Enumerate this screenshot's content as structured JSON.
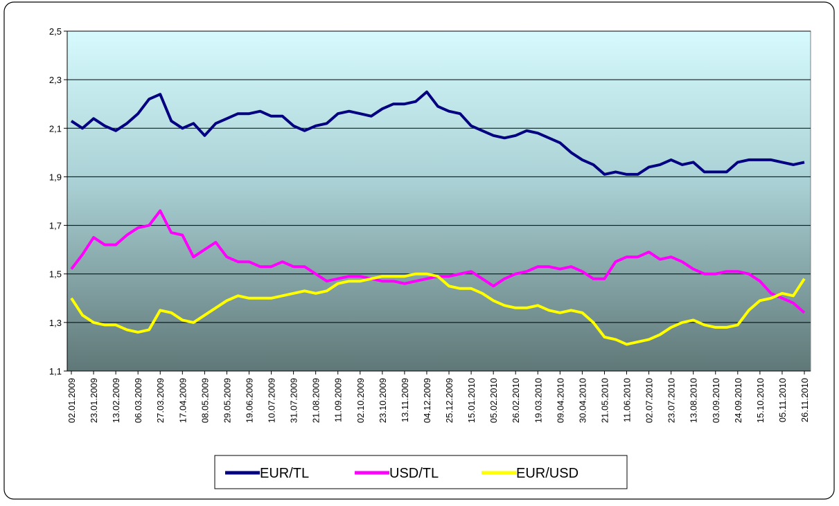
{
  "chart_data": {
    "type": "line",
    "categories": [
      "02.01.2009",
      null,
      "23.01.2009",
      null,
      "13.02.2009",
      null,
      "06.03.2009",
      null,
      "27.03.2009",
      null,
      "17.04.2009",
      null,
      "08.05.2009",
      null,
      "29.05.2009",
      null,
      "19.06.2009",
      null,
      "10.07.2009",
      null,
      "31.07.2009",
      null,
      "21.08.2009",
      null,
      "11.09.2009",
      null,
      "02.10.2009",
      null,
      "23.10.2009",
      null,
      "13.11.2009",
      null,
      "04.12.2009",
      null,
      "25.12.2009",
      null,
      "15.01.2010",
      null,
      "05.02.2010",
      null,
      "26.02.2010",
      null,
      "19.03.2010",
      null,
      "09.04.2010",
      null,
      "30.04.2010",
      null,
      "21.05.2010",
      null,
      "11.06.2010",
      null,
      "02.07.2010",
      null,
      "23.07.2010",
      null,
      "13.08.2010",
      null,
      "03.09.2010",
      null,
      "24.09.2010",
      null,
      "15.10.2010",
      null,
      "05.11.2010",
      null,
      "26.11.2010"
    ],
    "series": [
      {
        "name": "EUR/TL",
        "color": "#000080",
        "values": [
          2.13,
          2.1,
          2.14,
          2.11,
          2.09,
          2.12,
          2.16,
          2.22,
          2.24,
          2.13,
          2.1,
          2.12,
          2.07,
          2.12,
          2.14,
          2.16,
          2.16,
          2.17,
          2.15,
          2.15,
          2.11,
          2.09,
          2.11,
          2.12,
          2.16,
          2.17,
          2.16,
          2.15,
          2.18,
          2.2,
          2.2,
          2.21,
          2.25,
          2.19,
          2.17,
          2.16,
          2.11,
          2.09,
          2.07,
          2.06,
          2.07,
          2.09,
          2.08,
          2.06,
          2.04,
          2.0,
          1.97,
          1.95,
          1.91,
          1.92,
          1.91,
          1.91,
          1.94,
          1.95,
          1.97,
          1.95,
          1.96,
          1.92,
          1.92,
          1.92,
          1.96,
          1.97,
          1.97,
          1.97,
          1.96,
          1.95,
          1.96
        ]
      },
      {
        "name": "USD/TL",
        "color": "#ff00ff",
        "values": [
          1.52,
          1.58,
          1.65,
          1.62,
          1.62,
          1.66,
          1.69,
          1.7,
          1.76,
          1.67,
          1.66,
          1.57,
          1.6,
          1.63,
          1.57,
          1.55,
          1.55,
          1.53,
          1.53,
          1.55,
          1.53,
          1.53,
          1.5,
          1.47,
          1.48,
          1.49,
          1.49,
          1.48,
          1.47,
          1.47,
          1.46,
          1.47,
          1.48,
          1.49,
          1.49,
          1.5,
          1.51,
          1.48,
          1.45,
          1.48,
          1.5,
          1.51,
          1.53,
          1.53,
          1.52,
          1.53,
          1.51,
          1.48,
          1.48,
          1.55,
          1.57,
          1.57,
          1.59,
          1.56,
          1.57,
          1.55,
          1.52,
          1.5,
          1.5,
          1.51,
          1.51,
          1.5,
          1.47,
          1.42,
          1.4,
          1.38,
          1.34
        ]
      },
      {
        "name": "EUR/USD",
        "color": "#ffff00",
        "values": [
          1.4,
          1.33,
          1.3,
          1.29,
          1.29,
          1.27,
          1.26,
          1.27,
          1.35,
          1.34,
          1.31,
          1.3,
          1.33,
          1.36,
          1.39,
          1.41,
          1.4,
          1.4,
          1.4,
          1.41,
          1.42,
          1.43,
          1.42,
          1.43,
          1.46,
          1.47,
          1.47,
          1.48,
          1.49,
          1.49,
          1.49,
          1.5,
          1.5,
          1.49,
          1.45,
          1.44,
          1.44,
          1.42,
          1.39,
          1.37,
          1.36,
          1.36,
          1.37,
          1.35,
          1.34,
          1.35,
          1.34,
          1.3,
          1.24,
          1.23,
          1.21,
          1.22,
          1.23,
          1.25,
          1.28,
          1.3,
          1.31,
          1.29,
          1.28,
          1.28,
          1.29,
          1.35,
          1.39,
          1.4,
          1.42,
          1.41,
          1.48
        ]
      }
    ],
    "ylim": [
      1.1,
      2.5
    ],
    "yticks": [
      {
        "value": 1.1,
        "label": "1,1"
      },
      {
        "value": 1.3,
        "label": "1,3"
      },
      {
        "value": 1.5,
        "label": "1,5"
      },
      {
        "value": 1.7,
        "label": "1,7"
      },
      {
        "value": 1.9,
        "label": "1,9"
      },
      {
        "value": 2.1,
        "label": "2,1"
      },
      {
        "value": 2.3,
        "label": "2,3"
      },
      {
        "value": 2.5,
        "label": "2,5"
      }
    ],
    "grid": true,
    "legend": "bottom"
  }
}
